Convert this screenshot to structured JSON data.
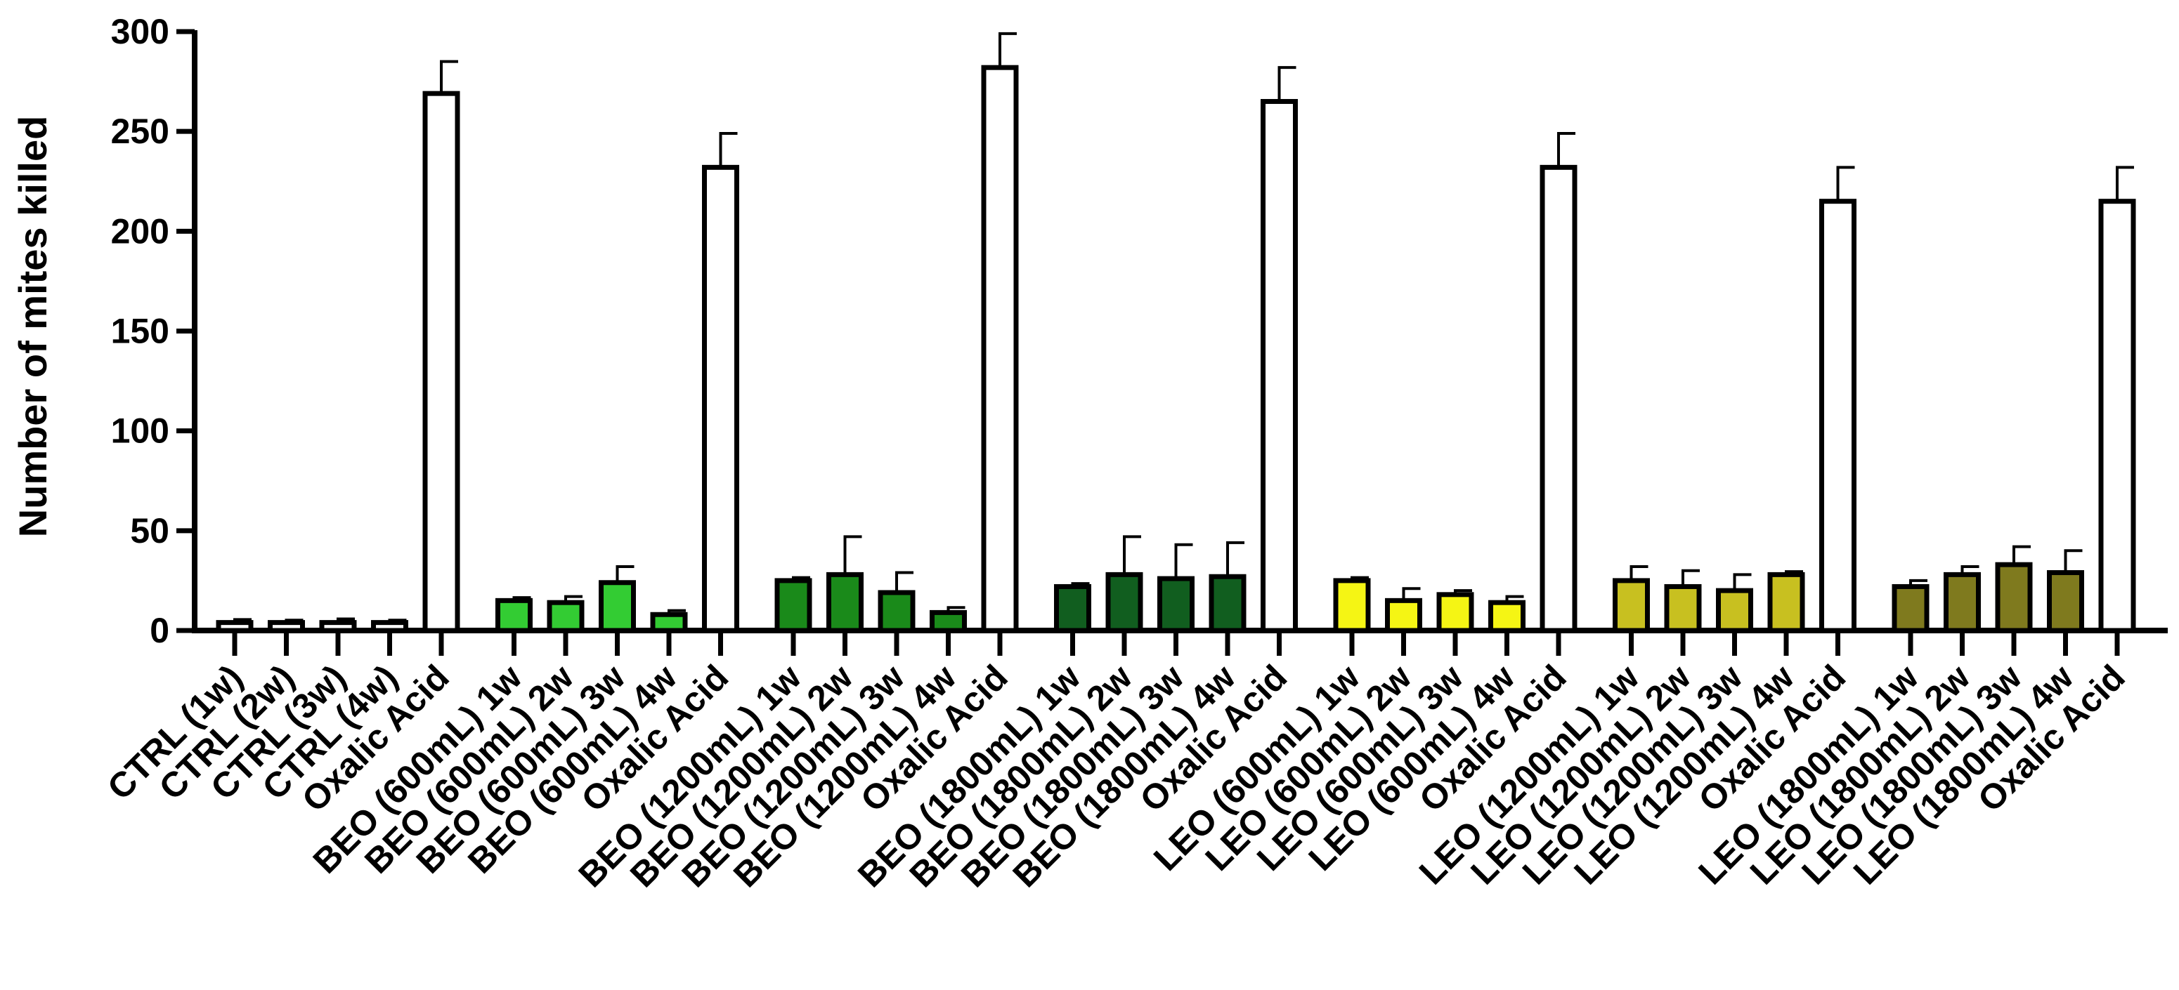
{
  "chart_data": {
    "type": "bar",
    "title": "",
    "xlabel": "",
    "ylabel": "Number of mites killed",
    "ylim": [
      0,
      300
    ],
    "yticks": [
      0,
      50,
      100,
      150,
      200,
      250,
      300
    ],
    "grid": false,
    "legend": "none",
    "groups": [
      {
        "bars": [
          {
            "label": "CTRL (1w)",
            "value": 4,
            "error": 1.5,
            "color": "#ffffff"
          },
          {
            "label": "CTRL (2w)",
            "value": 4,
            "error": 1.2,
            "color": "#ffffff"
          },
          {
            "label": "CTRL (3w)",
            "value": 4,
            "error": 1.8,
            "color": "#ffffff"
          },
          {
            "label": "CTRL (4w)",
            "value": 4,
            "error": 1.2,
            "color": "#ffffff"
          },
          {
            "label": "Oxalic Acid",
            "value": 269,
            "error": 16,
            "color": "#ffffff"
          }
        ]
      },
      {
        "bars": [
          {
            "label": "BEO (600mL) 1w",
            "value": 15,
            "error": 1.5,
            "color": "#33cc33"
          },
          {
            "label": "BEO (600mL) 2w",
            "value": 14,
            "error": 3,
            "color": "#33cc33"
          },
          {
            "label": "BEO (600mL) 3w",
            "value": 24,
            "error": 8,
            "color": "#33cc33"
          },
          {
            "label": "BEO (600mL) 4w",
            "value": 8,
            "error": 2,
            "color": "#33cc33"
          },
          {
            "label": "Oxalic Acid",
            "value": 232,
            "error": 17,
            "color": "#ffffff"
          }
        ]
      },
      {
        "bars": [
          {
            "label": "BEO (1200mL) 1w",
            "value": 25,
            "error": 1.5,
            "color": "#1a8a1a"
          },
          {
            "label": "BEO (1200mL) 2w",
            "value": 28,
            "error": 19,
            "color": "#1a8a1a"
          },
          {
            "label": "BEO (1200mL) 3w",
            "value": 19,
            "error": 10,
            "color": "#1a8a1a"
          },
          {
            "label": "BEO (1200mL) 4w",
            "value": 9,
            "error": 2.5,
            "color": "#1a8a1a"
          },
          {
            "label": "Oxalic Acid",
            "value": 282,
            "error": 17,
            "color": "#ffffff"
          }
        ]
      },
      {
        "bars": [
          {
            "label": "BEO (1800mL) 1w",
            "value": 22,
            "error": 1.5,
            "color": "#115e1f"
          },
          {
            "label": "BEO (1800mL) 2w",
            "value": 28,
            "error": 19,
            "color": "#115e1f"
          },
          {
            "label": "BEO (1800mL) 3w",
            "value": 26,
            "error": 17,
            "color": "#115e1f"
          },
          {
            "label": "BEO (1800mL) 4w",
            "value": 27,
            "error": 17,
            "color": "#115e1f"
          },
          {
            "label": "Oxalic Acid",
            "value": 265,
            "error": 17,
            "color": "#ffffff"
          }
        ]
      },
      {
        "bars": [
          {
            "label": "LEO (600mL) 1w",
            "value": 25,
            "error": 1.5,
            "color": "#f5f514"
          },
          {
            "label": "LEO (600mL) 2w",
            "value": 15,
            "error": 6,
            "color": "#f5f514"
          },
          {
            "label": "LEO (600mL) 3w",
            "value": 18,
            "error": 2,
            "color": "#f5f514"
          },
          {
            "label": "LEO (600mL) 4w",
            "value": 14,
            "error": 3,
            "color": "#f5f514"
          },
          {
            "label": "Oxalic Acid",
            "value": 232,
            "error": 17,
            "color": "#ffffff"
          }
        ]
      },
      {
        "bars": [
          {
            "label": "LEO (1200mL) 1w",
            "value": 25,
            "error": 7,
            "color": "#c8c020"
          },
          {
            "label": "LEO (1200mL) 2w",
            "value": 22,
            "error": 8,
            "color": "#c8c020"
          },
          {
            "label": "LEO (1200mL) 3w",
            "value": 20,
            "error": 8,
            "color": "#c8c020"
          },
          {
            "label": "LEO (1200mL) 4w",
            "value": 28,
            "error": 1.5,
            "color": "#c8c020"
          },
          {
            "label": "Oxalic Acid",
            "value": 215,
            "error": 17,
            "color": "#ffffff"
          }
        ]
      },
      {
        "bars": [
          {
            "label": "LEO (1800mL) 1w",
            "value": 22,
            "error": 3,
            "color": "#7f7a1e"
          },
          {
            "label": "LEO (1800mL) 2w",
            "value": 28,
            "error": 4,
            "color": "#7f7a1e"
          },
          {
            "label": "LEO (1800mL) 3w",
            "value": 33,
            "error": 9,
            "color": "#7f7a1e"
          },
          {
            "label": "LEO (1800mL) 4w",
            "value": 29,
            "error": 11,
            "color": "#7f7a1e"
          },
          {
            "label": "Oxalic Acid",
            "value": 215,
            "error": 17,
            "color": "#ffffff"
          }
        ]
      }
    ]
  }
}
